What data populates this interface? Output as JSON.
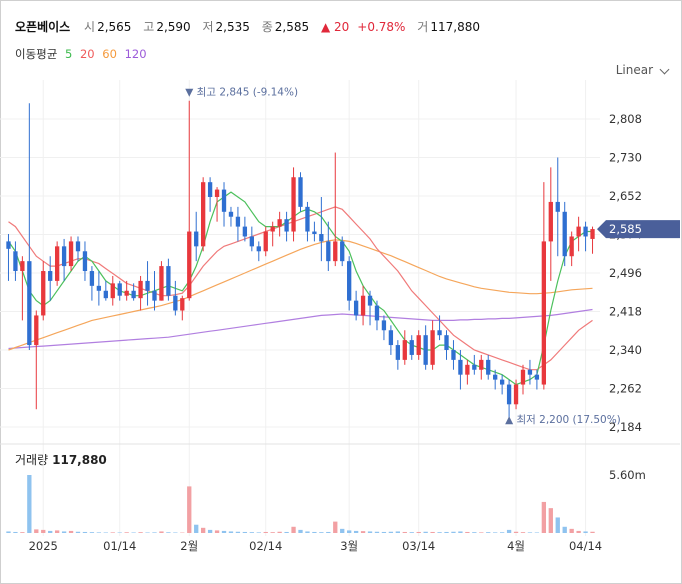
{
  "header": {
    "name": "오픈베이스",
    "open_label": "시",
    "open": "2,565",
    "high_label": "고",
    "high": "2,590",
    "low_label": "저",
    "low": "2,535",
    "close_label": "종",
    "close": "2,585",
    "change": "▲ 20",
    "change_pct": "+0.78%",
    "volume_label": "거",
    "volume": "117,880"
  },
  "ma_legend": {
    "label": "이동평균",
    "items": [
      {
        "text": "5",
        "color": "#3dbb4e"
      },
      {
        "text": "20",
        "color": "#ef5b5b"
      },
      {
        "text": "60",
        "color": "#f59a3c"
      },
      {
        "text": "120",
        "color": "#9c5bd9"
      }
    ]
  },
  "scale_toggle": "Linear",
  "volume_panel": {
    "title": "거래량",
    "value": "117,880",
    "tick": "5.60m"
  },
  "chart_data": {
    "type": "candlestick",
    "y_ticks": [
      2808,
      2730,
      2652,
      2574,
      2496,
      2418,
      2340,
      2262,
      2184
    ],
    "y_tick_labels": [
      "2,808",
      "2,730",
      "2,652",
      "2,574",
      "2,496",
      "2,418",
      "2,340",
      "2,262",
      "2,184"
    ],
    "x_labels": [
      "2025",
      "01/14",
      "2월",
      "02/14",
      "3월",
      "03/14",
      "4월",
      "04/14"
    ],
    "x_label_index": [
      5,
      16,
      26,
      37,
      49,
      59,
      73,
      83
    ],
    "current_price": 2585,
    "current_price_label": "2,585",
    "high_annotation": {
      "text": "▼ 최고 2,845 (-9.14%)",
      "value": 2845,
      "index": 26
    },
    "low_annotation": {
      "text": "▲ 최저 2,200 (17.50%)",
      "value": 2200,
      "index": 72
    },
    "up_color": "#e8383d",
    "down_color": "#2f6fd1",
    "ohlc": [
      [
        2560,
        2575,
        2480,
        2545
      ],
      [
        2540,
        2560,
        2480,
        2500
      ],
      [
        2500,
        2530,
        2400,
        2520
      ],
      [
        2520,
        2840,
        2340,
        2350
      ],
      [
        2350,
        2420,
        2220,
        2410
      ],
      [
        2410,
        2520,
        2400,
        2500
      ],
      [
        2500,
        2530,
        2440,
        2480
      ],
      [
        2480,
        2560,
        2470,
        2550
      ],
      [
        2550,
        2565,
        2480,
        2510
      ],
      [
        2510,
        2570,
        2500,
        2560
      ],
      [
        2560,
        2570,
        2520,
        2540
      ],
      [
        2540,
        2560,
        2480,
        2500
      ],
      [
        2500,
        2510,
        2440,
        2470
      ],
      [
        2470,
        2500,
        2430,
        2460
      ],
      [
        2460,
        2480,
        2440,
        2445
      ],
      [
        2445,
        2490,
        2430,
        2475
      ],
      [
        2475,
        2480,
        2440,
        2450
      ],
      [
        2450,
        2480,
        2440,
        2460
      ],
      [
        2460,
        2475,
        2440,
        2445
      ],
      [
        2445,
        2490,
        2420,
        2480
      ],
      [
        2480,
        2520,
        2430,
        2460
      ],
      [
        2460,
        2500,
        2420,
        2440
      ],
      [
        2440,
        2520,
        2440,
        2510
      ],
      [
        2510,
        2525,
        2440,
        2450
      ],
      [
        2450,
        2480,
        2410,
        2420
      ],
      [
        2420,
        2450,
        2400,
        2445
      ],
      [
        2445,
        2845,
        2440,
        2580
      ],
      [
        2580,
        2620,
        2520,
        2550
      ],
      [
        2550,
        2690,
        2540,
        2680
      ],
      [
        2680,
        2690,
        2620,
        2650
      ],
      [
        2650,
        2670,
        2600,
        2665
      ],
      [
        2665,
        2680,
        2590,
        2620
      ],
      [
        2620,
        2630,
        2590,
        2610
      ],
      [
        2610,
        2630,
        2560,
        2590
      ],
      [
        2590,
        2610,
        2560,
        2570
      ],
      [
        2570,
        2590,
        2540,
        2550
      ],
      [
        2550,
        2560,
        2520,
        2540
      ],
      [
        2540,
        2590,
        2530,
        2580
      ],
      [
        2580,
        2600,
        2550,
        2590
      ],
      [
        2590,
        2620,
        2570,
        2605
      ],
      [
        2605,
        2620,
        2560,
        2580
      ],
      [
        2580,
        2710,
        2560,
        2690
      ],
      [
        2690,
        2700,
        2620,
        2630
      ],
      [
        2630,
        2640,
        2560,
        2580
      ],
      [
        2580,
        2600,
        2560,
        2575
      ],
      [
        2575,
        2650,
        2520,
        2560
      ],
      [
        2560,
        2600,
        2500,
        2520
      ],
      [
        2520,
        2740,
        2510,
        2560
      ],
      [
        2560,
        2570,
        2510,
        2520
      ],
      [
        2520,
        2530,
        2420,
        2440
      ],
      [
        2440,
        2460,
        2400,
        2410
      ],
      [
        2410,
        2470,
        2390,
        2450
      ],
      [
        2450,
        2460,
        2390,
        2430
      ],
      [
        2430,
        2440,
        2380,
        2400
      ],
      [
        2400,
        2410,
        2360,
        2380
      ],
      [
        2380,
        2390,
        2330,
        2350
      ],
      [
        2350,
        2360,
        2300,
        2320
      ],
      [
        2320,
        2380,
        2310,
        2360
      ],
      [
        2360,
        2370,
        2320,
        2330
      ],
      [
        2330,
        2380,
        2320,
        2370
      ],
      [
        2370,
        2390,
        2300,
        2310
      ],
      [
        2310,
        2400,
        2300,
        2380
      ],
      [
        2380,
        2410,
        2360,
        2370
      ],
      [
        2370,
        2380,
        2320,
        2340
      ],
      [
        2340,
        2360,
        2300,
        2320
      ],
      [
        2320,
        2340,
        2260,
        2290
      ],
      [
        2290,
        2320,
        2270,
        2310
      ],
      [
        2310,
        2330,
        2290,
        2300
      ],
      [
        2300,
        2330,
        2280,
        2320
      ],
      [
        2320,
        2330,
        2280,
        2290
      ],
      [
        2290,
        2300,
        2260,
        2280
      ],
      [
        2280,
        2290,
        2250,
        2270
      ],
      [
        2270,
        2280,
        2200,
        2230
      ],
      [
        2230,
        2280,
        2220,
        2270
      ],
      [
        2270,
        2310,
        2250,
        2300
      ],
      [
        2300,
        2320,
        2270,
        2290
      ],
      [
        2290,
        2300,
        2260,
        2280
      ],
      [
        2270,
        2680,
        2260,
        2560
      ],
      [
        2560,
        2710,
        2480,
        2640
      ],
      [
        2640,
        2730,
        2530,
        2620
      ],
      [
        2620,
        2640,
        2510,
        2530
      ],
      [
        2530,
        2580,
        2510,
        2570
      ],
      [
        2570,
        2610,
        2540,
        2590
      ],
      [
        2590,
        2600,
        2540,
        2570
      ],
      [
        2565,
        2590,
        2535,
        2585
      ]
    ],
    "ma5": [
      2560,
      2540,
      2500,
      2460,
      2440,
      2430,
      2440,
      2460,
      2480,
      2500,
      2520,
      2530,
      2520,
      2500,
      2480,
      2470,
      2460,
      2455,
      2450,
      2450,
      2455,
      2460,
      2465,
      2470,
      2465,
      2460,
      2480,
      2510,
      2550,
      2600,
      2640,
      2650,
      2660,
      2650,
      2640,
      2620,
      2600,
      2590,
      2590,
      2590,
      2600,
      2610,
      2620,
      2625,
      2620,
      2610,
      2590,
      2570,
      2560,
      2540,
      2500,
      2470,
      2450,
      2430,
      2420,
      2400,
      2380,
      2360,
      2350,
      2345,
      2340,
      2340,
      2350,
      2350,
      2340,
      2330,
      2320,
      2310,
      2305,
      2300,
      2295,
      2290,
      2280,
      2270,
      2275,
      2280,
      2290,
      2350,
      2420,
      2480,
      2530,
      2560,
      2570,
      2580,
      2580
    ],
    "ma20": [
      2600,
      2590,
      2570,
      2550,
      2530,
      2520,
      2510,
      2510,
      2515,
      2520,
      2525,
      2525,
      2520,
      2515,
      2505,
      2495,
      2485,
      2475,
      2470,
      2465,
      2460,
      2455,
      2450,
      2450,
      2452,
      2455,
      2470,
      2490,
      2510,
      2525,
      2540,
      2550,
      2555,
      2560,
      2565,
      2570,
      2575,
      2580,
      2585,
      2590,
      2595,
      2600,
      2605,
      2610,
      2615,
      2620,
      2625,
      2630,
      2625,
      2610,
      2595,
      2580,
      2565,
      2545,
      2530,
      2515,
      2500,
      2480,
      2460,
      2445,
      2430,
      2415,
      2400,
      2385,
      2370,
      2360,
      2350,
      2340,
      2335,
      2330,
      2325,
      2320,
      2315,
      2310,
      2305,
      2300,
      2300,
      2310,
      2320,
      2335,
      2350,
      2365,
      2380,
      2390,
      2400
    ],
    "ma60": [
      2340,
      2345,
      2350,
      2355,
      2360,
      2365,
      2370,
      2375,
      2380,
      2385,
      2390,
      2395,
      2400,
      2403,
      2406,
      2409,
      2412,
      2415,
      2418,
      2421,
      2424,
      2427,
      2430,
      2434,
      2438,
      2442,
      2448,
      2454,
      2460,
      2466,
      2472,
      2478,
      2484,
      2490,
      2496,
      2502,
      2508,
      2514,
      2520,
      2526,
      2532,
      2538,
      2544,
      2549,
      2554,
      2558,
      2561,
      2563,
      2562,
      2560,
      2556,
      2551,
      2546,
      2541,
      2536,
      2531,
      2525,
      2519,
      2513,
      2507,
      2501,
      2495,
      2489,
      2484,
      2480,
      2476,
      2472,
      2468,
      2465,
      2463,
      2461,
      2459,
      2457,
      2456,
      2455,
      2454,
      2454,
      2455,
      2456,
      2458,
      2460,
      2462,
      2463,
      2464,
      2465
    ],
    "ma120": [
      2343,
      2344,
      2345,
      2346,
      2347,
      2348,
      2349,
      2350,
      2351,
      2352,
      2353,
      2354,
      2355,
      2356,
      2357,
      2358,
      2359,
      2360,
      2361,
      2362,
      2363,
      2364,
      2365,
      2366,
      2368,
      2370,
      2372,
      2374,
      2376,
      2378,
      2380,
      2382,
      2384,
      2386,
      2388,
      2390,
      2392,
      2394,
      2396,
      2398,
      2400,
      2402,
      2404,
      2406,
      2408,
      2410,
      2411,
      2412,
      2413,
      2412,
      2411,
      2410,
      2409,
      2408,
      2407,
      2406,
      2405,
      2404,
      2403,
      2402,
      2401,
      2400,
      2400,
      2400,
      2400,
      2401,
      2401,
      2402,
      2402,
      2403,
      2403,
      2404,
      2404,
      2405,
      2406,
      2407,
      2408,
      2409,
      2410,
      2412,
      2414,
      2416,
      2418,
      2420,
      2422
    ],
    "volume": [
      0.15,
      0.1,
      0.08,
      5.6,
      0.35,
      0.3,
      0.2,
      0.25,
      0.15,
      0.2,
      0.12,
      0.1,
      0.08,
      0.06,
      0.05,
      0.06,
      0.05,
      0.07,
      0.05,
      0.08,
      0.05,
      0.06,
      0.15,
      0.07,
      0.05,
      0.04,
      4.5,
      0.8,
      0.5,
      0.3,
      0.25,
      0.2,
      0.15,
      0.12,
      0.1,
      0.08,
      0.06,
      0.1,
      0.08,
      0.12,
      0.1,
      0.6,
      0.3,
      0.15,
      0.1,
      0.08,
      0.1,
      1.1,
      0.4,
      0.25,
      0.2,
      0.18,
      0.15,
      0.12,
      0.1,
      0.12,
      0.15,
      0.1,
      0.08,
      0.1,
      0.12,
      0.1,
      0.08,
      0.1,
      0.12,
      0.15,
      0.1,
      0.08,
      0.06,
      0.08,
      0.06,
      0.07,
      0.3,
      0.12,
      0.08,
      0.06,
      0.05,
      3.0,
      2.4,
      1.5,
      0.6,
      0.4,
      0.2,
      0.15,
      0.12
    ]
  }
}
